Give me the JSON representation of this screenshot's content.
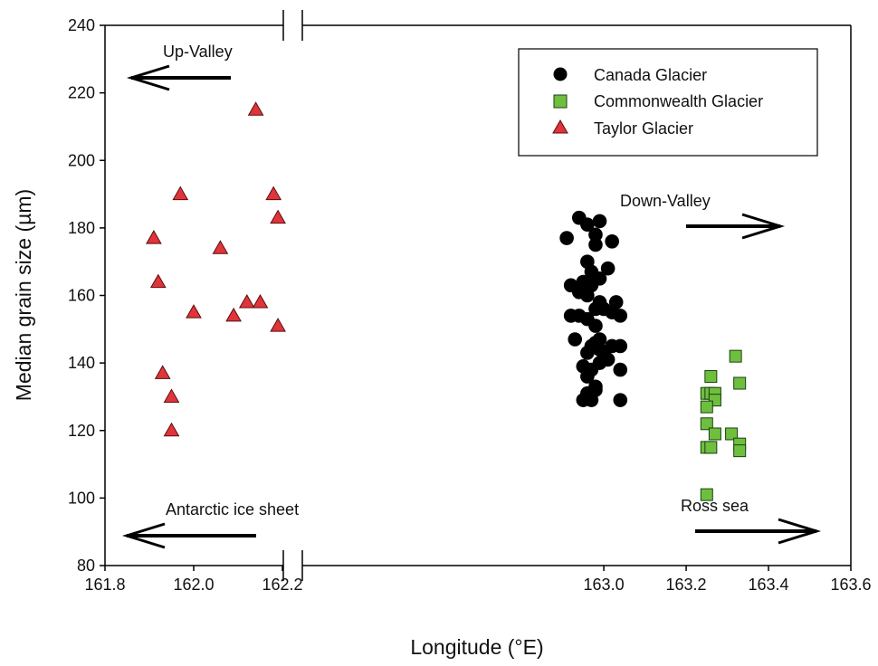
{
  "chart_data": {
    "type": "scatter",
    "xlabel": "Longitude (°E)",
    "ylabel": "Median grain size (µm)",
    "xlim": [
      161.8,
      163.6
    ],
    "ylim": [
      80,
      240
    ],
    "axis_break": [
      162.23,
      162.27
    ],
    "xticks": [
      "161.8",
      "162.0",
      "162.2",
      "163.0",
      "163.2",
      "163.4",
      "163.6"
    ],
    "xtick_values": [
      161.8,
      162.0,
      162.2,
      163.0,
      163.2,
      163.4,
      163.6
    ],
    "yticks": [
      80,
      100,
      120,
      140,
      160,
      180,
      200,
      220,
      240
    ],
    "grid": false,
    "legend_position": "top-right",
    "annotations": [
      {
        "text": "Up-Valley",
        "arrow": "left"
      },
      {
        "text": "Down-Valley",
        "arrow": "right"
      },
      {
        "text": "Antarctic ice sheet",
        "arrow": "left"
      },
      {
        "text": "Ross sea",
        "arrow": "right"
      }
    ],
    "series": [
      {
        "name": "Canada Glacier",
        "marker": "circle",
        "color": "#000000",
        "points": [
          [
            162.94,
            183
          ],
          [
            162.91,
            177
          ],
          [
            162.96,
            181
          ],
          [
            162.99,
            182
          ],
          [
            162.98,
            178
          ],
          [
            163.02,
            176
          ],
          [
            162.98,
            175
          ],
          [
            162.96,
            170
          ],
          [
            162.97,
            167
          ],
          [
            162.95,
            164
          ],
          [
            162.94,
            161
          ],
          [
            162.97,
            163
          ],
          [
            162.96,
            160
          ],
          [
            162.99,
            165
          ],
          [
            163.01,
            168
          ],
          [
            162.92,
            163
          ],
          [
            162.99,
            158
          ],
          [
            162.98,
            156
          ],
          [
            163.02,
            155
          ],
          [
            162.96,
            153
          ],
          [
            162.92,
            154
          ],
          [
            162.94,
            154
          ],
          [
            163.04,
            154
          ],
          [
            163.03,
            158
          ],
          [
            163.0,
            156
          ],
          [
            162.98,
            151
          ],
          [
            162.93,
            147
          ],
          [
            162.98,
            146
          ],
          [
            162.97,
            145
          ],
          [
            162.99,
            144
          ],
          [
            163.02,
            145
          ],
          [
            163.04,
            145
          ],
          [
            162.96,
            143
          ],
          [
            163.01,
            141
          ],
          [
            162.99,
            140
          ],
          [
            162.97,
            138
          ],
          [
            162.96,
            136
          ],
          [
            162.98,
            133
          ],
          [
            162.96,
            131
          ],
          [
            163.04,
            138
          ],
          [
            162.95,
            129
          ],
          [
            162.97,
            129
          ],
          [
            162.98,
            132
          ],
          [
            163.0,
            143
          ],
          [
            162.99,
            147
          ],
          [
            162.95,
            139
          ],
          [
            163.04,
            129
          ]
        ]
      },
      {
        "name": "Commonwealth Glacier",
        "marker": "square",
        "color": "#6fbf3f",
        "points": [
          [
            163.25,
            101
          ],
          [
            163.26,
            136
          ],
          [
            163.25,
            131
          ],
          [
            163.26,
            131
          ],
          [
            163.27,
            131
          ],
          [
            163.27,
            129
          ],
          [
            163.25,
            127
          ],
          [
            163.25,
            122
          ],
          [
            163.27,
            119
          ],
          [
            163.25,
            115
          ],
          [
            163.26,
            115
          ],
          [
            163.32,
            142
          ],
          [
            163.33,
            134
          ],
          [
            163.31,
            119
          ],
          [
            163.33,
            116
          ],
          [
            163.33,
            114
          ]
        ]
      },
      {
        "name": "Taylor Glacier",
        "marker": "triangle",
        "color": "#e0343a",
        "points": [
          [
            162.14,
            215
          ],
          [
            161.97,
            190
          ],
          [
            162.18,
            190
          ],
          [
            162.19,
            183
          ],
          [
            161.91,
            177
          ],
          [
            162.06,
            174
          ],
          [
            161.92,
            164
          ],
          [
            162.12,
            158
          ],
          [
            162.15,
            158
          ],
          [
            162.0,
            155
          ],
          [
            162.09,
            154
          ],
          [
            162.19,
            151
          ],
          [
            161.93,
            137
          ],
          [
            161.95,
            130
          ],
          [
            161.95,
            120
          ]
        ]
      }
    ]
  }
}
